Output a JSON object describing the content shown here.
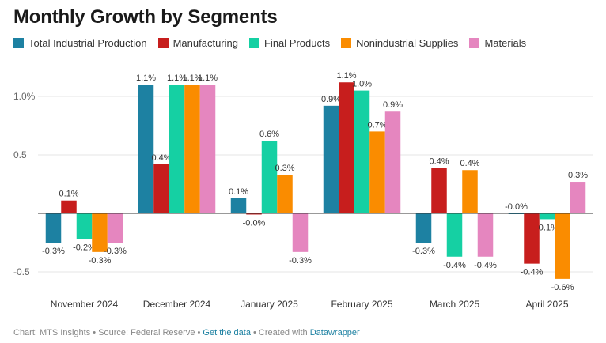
{
  "chart_data": {
    "type": "bar",
    "title": "Monthly Growth by Segments",
    "categories": [
      "November 2024",
      "December 2024",
      "January 2025",
      "February 2025",
      "March 2025",
      "April 2025"
    ],
    "series": [
      {
        "name": "Total Industrial Production",
        "color": "#1d81a2",
        "values": [
          -0.25,
          1.1,
          0.13,
          0.92,
          -0.25,
          0.0
        ],
        "labels": [
          "-0.3%",
          "1.1%",
          "0.1%",
          "0.9%",
          "-0.3%",
          "-0.0%"
        ]
      },
      {
        "name": "Manufacturing",
        "color": "#c71e1d",
        "values": [
          0.11,
          0.42,
          -0.01,
          1.12,
          0.39,
          -0.43
        ],
        "labels": [
          "0.1%",
          "0.4%",
          "-0.0%",
          "1.1%",
          "0.4%",
          "-0.4%"
        ]
      },
      {
        "name": "Final Products",
        "color": "#15d0a3",
        "values": [
          -0.22,
          1.1,
          0.62,
          1.05,
          -0.37,
          -0.05
        ],
        "labels": [
          "-0.2%",
          "1.1%",
          "0.6%",
          "1.0%",
          "-0.4%",
          "-0.1%"
        ]
      },
      {
        "name": "Nonindustrial Supplies",
        "color": "#fa8c00",
        "values": [
          -0.33,
          1.1,
          0.33,
          0.7,
          0.37,
          -0.56
        ],
        "labels": [
          "-0.3%",
          "1.1%",
          "0.3%",
          "0.7%",
          "0.4%",
          "-0.6%"
        ]
      },
      {
        "name": "Materials",
        "color": "#e586bf",
        "values": [
          -0.25,
          1.1,
          -0.33,
          0.87,
          -0.37,
          0.27
        ],
        "labels": [
          "-0.3%",
          "1.1%",
          "-0.3%",
          "0.9%",
          "-0.4%",
          "0.3%"
        ]
      }
    ],
    "yticks": [
      -0.5,
      0.5,
      1.0
    ],
    "ytick_labels": [
      "-0.5",
      "0.5",
      "1.0%"
    ],
    "ylim": [
      -0.6,
      1.25
    ],
    "grid": true,
    "legend": "top-left"
  },
  "footer": {
    "prefix": "Chart: MTS Insights • Source: Federal Reserve • ",
    "link1": "Get the data",
    "mid": " • Created with ",
    "link2": "Datawrapper"
  }
}
